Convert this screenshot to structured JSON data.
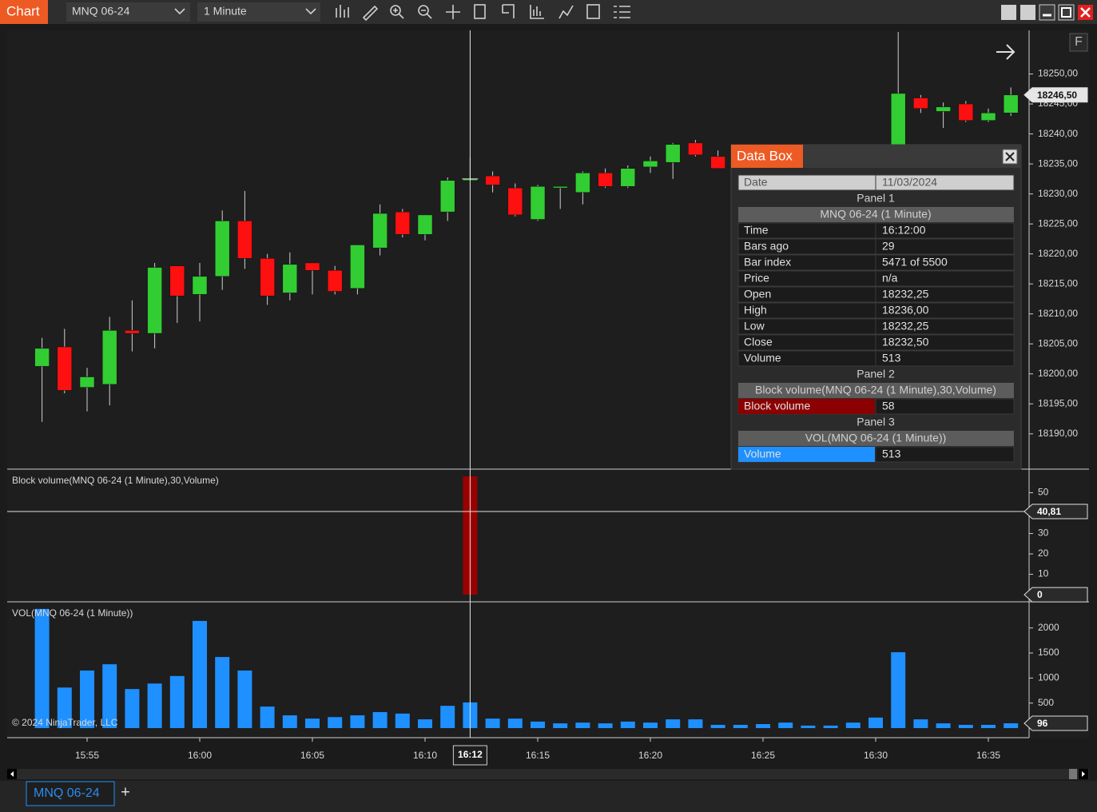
{
  "toolbar": {
    "title": "Chart",
    "instrument": "MNQ 06-24",
    "interval": "1 Minute"
  },
  "price_panel": {
    "ylim": [
      18184.25,
      18257
    ],
    "yticks": [
      {
        "value": 18250,
        "label": "18250,00"
      },
      {
        "value": 18245,
        "label": "18245,00"
      },
      {
        "value": 18240,
        "label": "18240,00"
      },
      {
        "value": 18235,
        "label": "18235,00"
      },
      {
        "value": 18230,
        "label": "18230,00"
      },
      {
        "value": 18225,
        "label": "18225,00"
      },
      {
        "value": 18220,
        "label": "18220,00"
      },
      {
        "value": 18215,
        "label": "18215,00"
      },
      {
        "value": 18210,
        "label": "18210,00"
      },
      {
        "value": 18205,
        "label": "18205,00"
      },
      {
        "value": 18200,
        "label": "18200,00"
      },
      {
        "value": 18195,
        "label": "18195,00"
      },
      {
        "value": 18190,
        "label": "18190,00"
      }
    ],
    "up_color": "#32cd32",
    "down_color": "#ff1010",
    "wick_color": "#cfcfcf",
    "candles": [
      {
        "time": "15:53",
        "open": 18201.25,
        "high": 18206,
        "low": 18192,
        "close": 18204.25
      },
      {
        "time": "15:54",
        "open": 18204.5,
        "high": 18207.5,
        "low": 18196.75,
        "close": 18197.25
      },
      {
        "time": "15:55",
        "open": 18197.75,
        "high": 18201,
        "low": 18193.75,
        "close": 18199.5
      },
      {
        "time": "15:56",
        "open": 18198.25,
        "high": 18209.5,
        "low": 18194.75,
        "close": 18207.25
      },
      {
        "time": "15:57",
        "open": 18207.25,
        "high": 18212.25,
        "low": 18203.75,
        "close": 18206.75
      },
      {
        "time": "15:58",
        "open": 18206.75,
        "high": 18218.5,
        "low": 18204.25,
        "close": 18217.75
      },
      {
        "time": "15:59",
        "open": 18218,
        "high": 18218,
        "low": 18208.5,
        "close": 18213
      },
      {
        "time": "16:00",
        "open": 18213.25,
        "high": 18218.5,
        "low": 18208.75,
        "close": 18216.25
      },
      {
        "time": "16:01",
        "open": 18216.25,
        "high": 18227.25,
        "low": 18214,
        "close": 18225.5
      },
      {
        "time": "16:02",
        "open": 18225.5,
        "high": 18230.5,
        "low": 18217.5,
        "close": 18219.25
      },
      {
        "time": "16:03",
        "open": 18219.25,
        "high": 18220,
        "low": 18211.5,
        "close": 18213
      },
      {
        "time": "16:04",
        "open": 18213.5,
        "high": 18220.25,
        "low": 18212.25,
        "close": 18218.25
      },
      {
        "time": "16:05",
        "open": 18218.5,
        "high": 18218.5,
        "low": 18213.25,
        "close": 18217.25
      },
      {
        "time": "16:06",
        "open": 18217.25,
        "high": 18218,
        "low": 18213.25,
        "close": 18213.75
      },
      {
        "time": "16:07",
        "open": 18214.25,
        "high": 18221.5,
        "low": 18213.25,
        "close": 18221.5
      },
      {
        "time": "16:08",
        "open": 18221,
        "high": 18228.25,
        "low": 18219.75,
        "close": 18226.75
      },
      {
        "time": "16:09",
        "open": 18227,
        "high": 18227.5,
        "low": 18222.75,
        "close": 18223.25
      },
      {
        "time": "16:10",
        "open": 18223.25,
        "high": 18226.5,
        "low": 18222.25,
        "close": 18226.5
      },
      {
        "time": "16:11",
        "open": 18227,
        "high": 18232.75,
        "low": 18225.5,
        "close": 18232.25
      },
      {
        "time": "16:12",
        "open": 18232.25,
        "high": 18236,
        "low": 18232.25,
        "close": 18232.5
      },
      {
        "time": "16:13",
        "open": 18233,
        "high": 18233.75,
        "low": 18230.25,
        "close": 18231.5
      },
      {
        "time": "16:14",
        "open": 18231,
        "high": 18231.75,
        "low": 18226.25,
        "close": 18226.5
      },
      {
        "time": "16:15",
        "open": 18225.75,
        "high": 18231.5,
        "low": 18225.5,
        "close": 18231.25
      },
      {
        "time": "16:16",
        "open": 18231,
        "high": 18231,
        "low": 18227.5,
        "close": 18231.25
      },
      {
        "time": "16:17",
        "open": 18230.25,
        "high": 18233.75,
        "low": 18228.25,
        "close": 18233.5
      },
      {
        "time": "16:18",
        "open": 18233.5,
        "high": 18234.25,
        "low": 18231,
        "close": 18231.25
      },
      {
        "time": "16:19",
        "open": 18231.25,
        "high": 18234.75,
        "low": 18231,
        "close": 18234.25
      },
      {
        "time": "16:20",
        "open": 18234.5,
        "high": 18236.25,
        "low": 18233.5,
        "close": 18235.5
      },
      {
        "time": "16:21",
        "open": 18235.25,
        "high": 18238.5,
        "low": 18232.5,
        "close": 18238.25
      },
      {
        "time": "16:22",
        "open": 18238.5,
        "high": 18239,
        "low": 18236.25,
        "close": 18236.5
      },
      {
        "time": "16:23",
        "open": 18236.25,
        "high": 18237.25,
        "low": 18234.25,
        "close": 18234.25
      },
      {
        "time": "16:31",
        "open": 18236,
        "high": 18257,
        "low": 18235,
        "close": 18246.75
      },
      {
        "time": "16:32",
        "open": 18246,
        "high": 18246.5,
        "low": 18243.5,
        "close": 18244.25
      },
      {
        "time": "16:33",
        "open": 18243.75,
        "high": 18245.25,
        "low": 18241,
        "close": 18244.5
      },
      {
        "time": "16:34",
        "open": 18245,
        "high": 18245.5,
        "low": 18242,
        "close": 18242.25
      },
      {
        "time": "16:35",
        "open": 18242.25,
        "high": 18244.25,
        "low": 18242,
        "close": 18243.5
      },
      {
        "time": "16:36",
        "open": 18243.5,
        "high": 18247.75,
        "low": 18243,
        "close": 18246.5
      }
    ],
    "last_price": {
      "value": 18246.5,
      "label": "18246,50"
    },
    "f_button": "F"
  },
  "block_panel": {
    "title": "Block volume(MNQ 06-24 (1 Minute),30,Volume)",
    "ylim": [
      -3.5,
      60.4
    ],
    "yticks": [
      50,
      30,
      20,
      10
    ],
    "color": "#9a0000",
    "bars": [
      {
        "time": "16:12",
        "value": 58
      }
    ],
    "level": {
      "value": 40.81,
      "label": "40,81"
    },
    "last": {
      "value": 0,
      "label": "0"
    }
  },
  "volume_panel": {
    "title": "VOL(MNQ 06-24 (1 Minute))",
    "ylim": [
      -175,
      2490
    ],
    "yticks": [
      2000,
      1500,
      1000,
      500
    ],
    "color": "#1e90ff",
    "bars": [
      {
        "time": "15:53",
        "value": 2380
      },
      {
        "time": "15:54",
        "value": 810
      },
      {
        "time": "15:55",
        "value": 1150
      },
      {
        "time": "15:56",
        "value": 1275
      },
      {
        "time": "15:57",
        "value": 780
      },
      {
        "time": "15:58",
        "value": 890
      },
      {
        "time": "15:59",
        "value": 1040
      },
      {
        "time": "16:00",
        "value": 2140
      },
      {
        "time": "16:01",
        "value": 1420
      },
      {
        "time": "16:02",
        "value": 1150
      },
      {
        "time": "16:03",
        "value": 430
      },
      {
        "time": "16:04",
        "value": 255
      },
      {
        "time": "16:05",
        "value": 190
      },
      {
        "time": "16:06",
        "value": 220
      },
      {
        "time": "16:07",
        "value": 255
      },
      {
        "time": "16:08",
        "value": 320
      },
      {
        "time": "16:09",
        "value": 290
      },
      {
        "time": "16:10",
        "value": 175
      },
      {
        "time": "16:11",
        "value": 445
      },
      {
        "time": "16:12",
        "value": 513
      },
      {
        "time": "16:13",
        "value": 190
      },
      {
        "time": "16:14",
        "value": 190
      },
      {
        "time": "16:15",
        "value": 130
      },
      {
        "time": "16:16",
        "value": 95
      },
      {
        "time": "16:17",
        "value": 110
      },
      {
        "time": "16:18",
        "value": 95
      },
      {
        "time": "16:19",
        "value": 130
      },
      {
        "time": "16:20",
        "value": 110
      },
      {
        "time": "16:21",
        "value": 175
      },
      {
        "time": "16:22",
        "value": 175
      },
      {
        "time": "16:23",
        "value": 65
      },
      {
        "time": "16:24",
        "value": 65
      },
      {
        "time": "16:25",
        "value": 80
      },
      {
        "time": "16:26",
        "value": 110
      },
      {
        "time": "16:27",
        "value": 50
      },
      {
        "time": "16:28",
        "value": 50
      },
      {
        "time": "16:29",
        "value": 110
      },
      {
        "time": "16:30",
        "value": 210
      },
      {
        "time": "16:31",
        "value": 1515
      },
      {
        "time": "16:32",
        "value": 175
      },
      {
        "time": "16:33",
        "value": 95
      },
      {
        "time": "16:34",
        "value": 65
      },
      {
        "time": "16:35",
        "value": 65
      },
      {
        "time": "16:36",
        "value": 96
      }
    ],
    "last": {
      "value": 96,
      "label": "96"
    },
    "copyright": "© 2024 NinjaTrader, LLC"
  },
  "time_axis": {
    "ticks": [
      "15:55",
      "16:00",
      "16:05",
      "16:10",
      "16:15",
      "16:20",
      "16:25",
      "16:30",
      "16:35"
    ],
    "crosshair": "16:12"
  },
  "data_box": {
    "title": "Data Box",
    "rows": [
      {
        "style": "light",
        "label": "Date",
        "value": "11/03/2024"
      },
      {
        "style": "section",
        "label": "Panel 1"
      },
      {
        "style": "source",
        "label": "MNQ 06-24 (1 Minute)"
      },
      {
        "style": "field",
        "label": "Time",
        "value": "16:12:00"
      },
      {
        "style": "field",
        "label": "Bars ago",
        "value": "29"
      },
      {
        "style": "field",
        "label": "Bar index",
        "value": "5471 of 5500"
      },
      {
        "style": "field",
        "label": "Price",
        "value": "n/a"
      },
      {
        "style": "field",
        "label": "Open",
        "value": "18232,25"
      },
      {
        "style": "field",
        "label": "High",
        "value": "18236,00"
      },
      {
        "style": "field",
        "label": "Low",
        "value": "18232,25"
      },
      {
        "style": "field",
        "label": "Close",
        "value": "18232,50"
      },
      {
        "style": "field",
        "label": "Volume",
        "value": "513"
      },
      {
        "style": "section",
        "label": "Panel 2"
      },
      {
        "style": "source",
        "label": "Block volume(MNQ 06-24 (1 Minute),30,Volume)"
      },
      {
        "style": "field",
        "label": "Block volume",
        "value": "58",
        "color": "#8b0000"
      },
      {
        "style": "section",
        "label": "Panel 3"
      },
      {
        "style": "source",
        "label": "VOL(MNQ 06-24 (1 Minute))"
      },
      {
        "style": "field",
        "label": "Volume",
        "value": "513",
        "color": "#1e90ff"
      }
    ]
  },
  "tabs": {
    "active": "MNQ 06-24",
    "add": "+"
  }
}
